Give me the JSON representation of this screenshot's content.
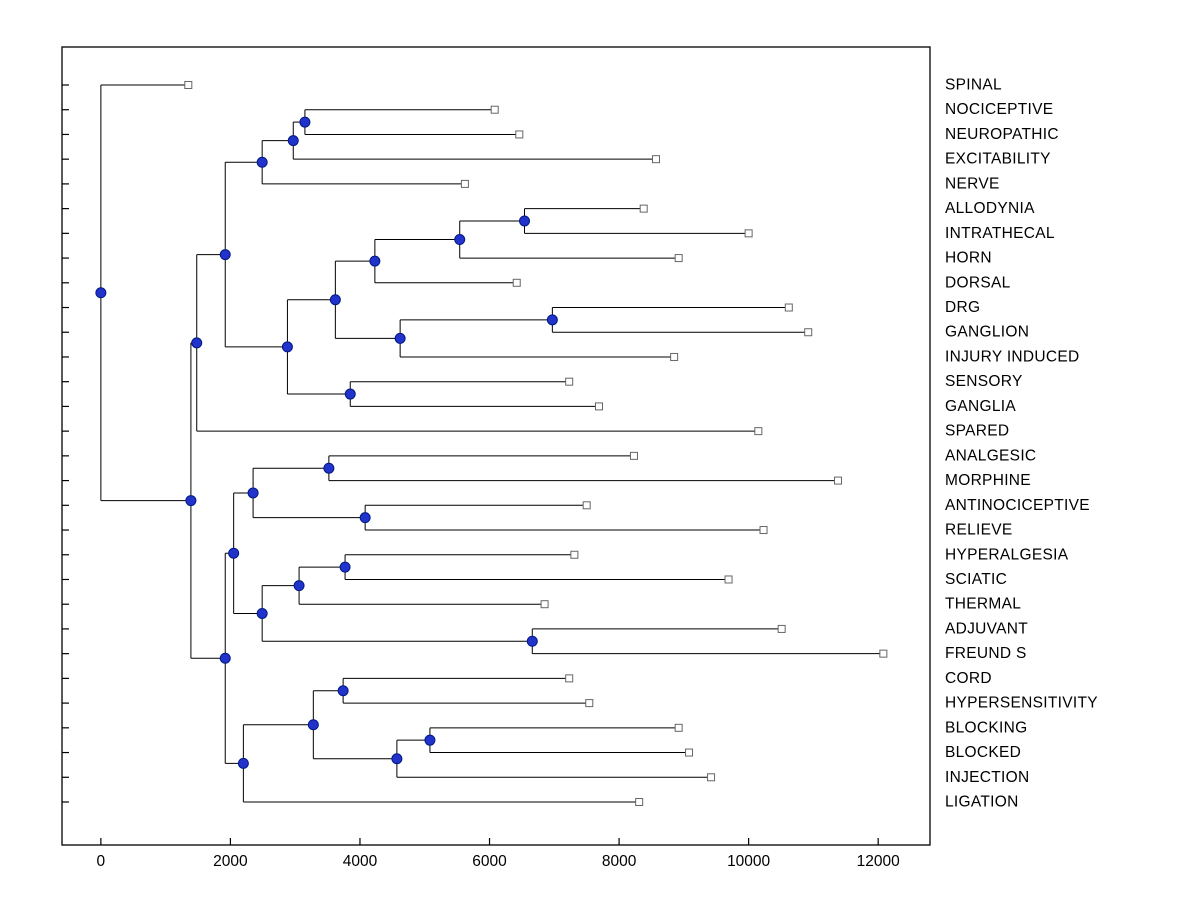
{
  "figure": {
    "background": "#ffffff"
  },
  "chart_data": {
    "type": "dendrogram",
    "title": "",
    "xlabel": "",
    "ylabel": "",
    "orientation": "horizontal",
    "legend": "none",
    "grid": false,
    "xlim": [
      -600,
      12800
    ],
    "x_ticks": [
      0,
      2000,
      4000,
      6000,
      8000,
      10000,
      12000
    ],
    "categories": [
      "SPINAL",
      "NOCICEPTIVE",
      "NEUROPATHIC",
      "EXCITABILITY",
      "NERVE",
      "ALLODYNIA",
      "INTRATHECAL",
      "HORN",
      "DORSAL",
      "DRG",
      "GANGLION",
      "INJURY INDUCED",
      "SENSORY",
      "GANGLIA",
      "SPARED",
      "ANALGESIC",
      "MORPHINE",
      "ANTINOCICEPTIVE",
      "RELIEVE",
      "HYPERALGESIA",
      "SCIATIC",
      "THERMAL",
      "ADJUVANT",
      "FREUND S",
      "CORD",
      "HYPERSENSITIVITY",
      "BLOCKING",
      "BLOCKED",
      "INJECTION",
      "LIGATION"
    ],
    "style": {
      "line_color": "#000000",
      "node_fill": "#2233cc",
      "node_stroke": "#001a80",
      "leaf_fill": "#ffffff",
      "leaf_stroke": "#666666",
      "axis_color": "#000000"
    },
    "tree": {
      "x": 0,
      "children": [
        {
          "label": "SPINAL",
          "x": 1350
        },
        {
          "x": 1390,
          "children": [
            {
              "x": 1480,
              "children": [
                {
                  "x": 1920,
                  "children": [
                    {
                      "x": 2490,
                      "children": [
                        {
                          "x": 2970,
                          "children": [
                            {
                              "x": 3150,
                              "children": [
                                {
                                  "label": "NOCICEPTIVE",
                                  "x": 6080
                                },
                                {
                                  "label": "NEUROPATHIC",
                                  "x": 6460
                                }
                              ]
                            },
                            {
                              "label": "EXCITABILITY",
                              "x": 8570
                            }
                          ]
                        },
                        {
                          "label": "NERVE",
                          "x": 5620
                        }
                      ]
                    },
                    {
                      "x": 2880,
                      "children": [
                        {
                          "x": 3620,
                          "children": [
                            {
                              "x": 4230,
                              "children": [
                                {
                                  "x": 5540,
                                  "children": [
                                    {
                                      "x": 6540,
                                      "children": [
                                        {
                                          "label": "ALLODYNIA",
                                          "x": 8380
                                        },
                                        {
                                          "label": "INTRATHECAL",
                                          "x": 10000
                                        }
                                      ]
                                    },
                                    {
                                      "label": "HORN",
                                      "x": 8920
                                    }
                                  ]
                                },
                                {
                                  "label": "DORSAL",
                                  "x": 6420
                                }
                              ]
                            },
                            {
                              "x": 4620,
                              "children": [
                                {
                                  "x": 6970,
                                  "children": [
                                    {
                                      "label": "DRG",
                                      "x": 10620
                                    },
                                    {
                                      "label": "GANGLION",
                                      "x": 10920
                                    }
                                  ]
                                },
                                {
                                  "label": "INJURY INDUCED",
                                  "x": 8850
                                }
                              ]
                            }
                          ]
                        },
                        {
                          "x": 3850,
                          "children": [
                            {
                              "label": "SENSORY",
                              "x": 7230
                            },
                            {
                              "label": "GANGLIA",
                              "x": 7690
                            }
                          ]
                        }
                      ]
                    }
                  ]
                },
                {
                  "label": "SPARED",
                  "x": 10150
                }
              ]
            },
            {
              "x": 1920,
              "children": [
                {
                  "x": 2050,
                  "children": [
                    {
                      "x": 2350,
                      "children": [
                        {
                          "x": 3520,
                          "children": [
                            {
                              "label": "ANALGESIC",
                              "x": 8230
                            },
                            {
                              "label": "MORPHINE",
                              "x": 11380
                            }
                          ]
                        },
                        {
                          "x": 4080,
                          "children": [
                            {
                              "label": "ANTINOCICEPTIVE",
                              "x": 7500
                            },
                            {
                              "label": "RELIEVE",
                              "x": 10230
                            }
                          ]
                        }
                      ]
                    },
                    {
                      "x": 2490,
                      "children": [
                        {
                          "x": 3060,
                          "children": [
                            {
                              "x": 3770,
                              "children": [
                                {
                                  "label": "HYPERALGESIA",
                                  "x": 7310
                                },
                                {
                                  "label": "SCIATIC",
                                  "x": 9690
                                }
                              ]
                            },
                            {
                              "label": "THERMAL",
                              "x": 6850
                            }
                          ]
                        },
                        {
                          "x": 6660,
                          "children": [
                            {
                              "label": "ADJUVANT",
                              "x": 10510
                            },
                            {
                              "label": "FREUND S",
                              "x": 12080
                            }
                          ]
                        }
                      ]
                    }
                  ]
                },
                {
                  "x": 2200,
                  "children": [
                    {
                      "x": 3280,
                      "children": [
                        {
                          "x": 3740,
                          "children": [
                            {
                              "label": "CORD",
                              "x": 7230
                            },
                            {
                              "label": "HYPERSENSITIVITY",
                              "x": 7540
                            }
                          ]
                        },
                        {
                          "x": 4570,
                          "children": [
                            {
                              "x": 5080,
                              "children": [
                                {
                                  "label": "BLOCKING",
                                  "x": 8920
                                },
                                {
                                  "label": "BLOCKED",
                                  "x": 9080
                                }
                              ]
                            },
                            {
                              "label": "INJECTION",
                              "x": 9420
                            }
                          ]
                        }
                      ]
                    },
                    {
                      "label": "LIGATION",
                      "x": 8310
                    }
                  ]
                }
              ]
            }
          ]
        }
      ]
    }
  }
}
